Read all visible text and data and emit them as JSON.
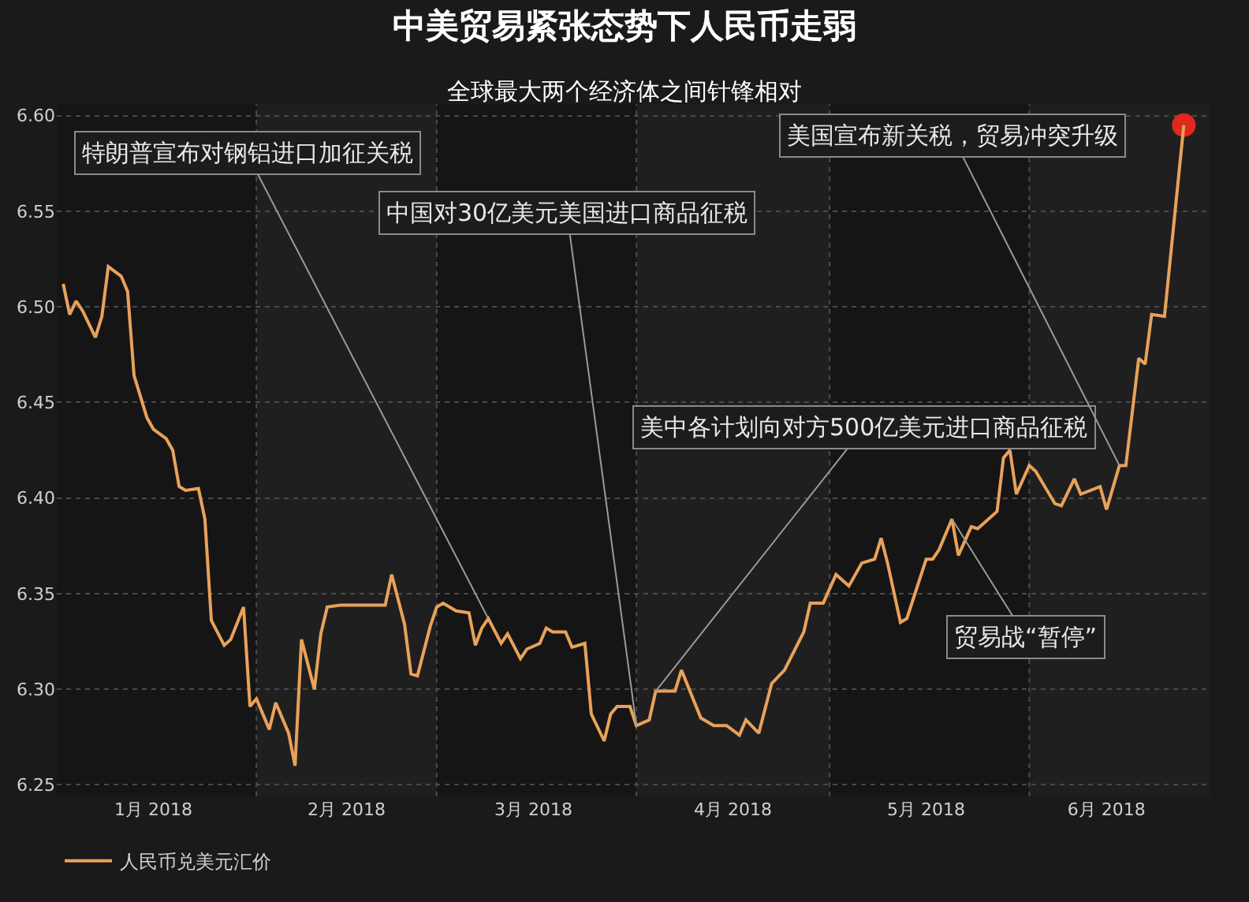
{
  "chart_data": {
    "type": "line",
    "title": "中美贸易紧张态势下人民币走弱",
    "subtitle": "全球最大两个经济体之间针锋相对",
    "x": [
      "2018-01-02",
      "2018-01-03",
      "2018-01-04",
      "2018-01-05",
      "2018-01-07",
      "2018-01-08",
      "2018-01-09",
      "2018-01-11",
      "2018-01-12",
      "2018-01-13",
      "2018-01-15",
      "2018-01-16",
      "2018-01-18",
      "2018-01-19",
      "2018-01-20",
      "2018-01-21",
      "2018-01-23",
      "2018-01-24",
      "2018-01-25",
      "2018-01-27",
      "2018-01-28",
      "2018-01-30",
      "2018-01-31",
      "2018-02-01",
      "2018-02-03",
      "2018-02-04",
      "2018-02-06",
      "2018-02-07",
      "2018-02-08",
      "2018-02-10",
      "2018-02-11",
      "2018-02-12",
      "2018-02-14",
      "2018-02-21",
      "2018-02-22",
      "2018-02-24",
      "2018-02-25",
      "2018-02-26",
      "2018-02-28",
      "2018-03-01",
      "2018-03-02",
      "2018-03-04",
      "2018-03-06",
      "2018-03-07",
      "2018-03-08",
      "2018-03-09",
      "2018-03-11",
      "2018-03-12",
      "2018-03-14",
      "2018-03-15",
      "2018-03-17",
      "2018-03-18",
      "2018-03-19",
      "2018-03-21",
      "2018-03-22",
      "2018-03-24",
      "2018-03-25",
      "2018-03-27",
      "2018-03-28",
      "2018-03-29",
      "2018-03-31",
      "2018-04-01",
      "2018-04-03",
      "2018-04-04",
      "2018-04-07",
      "2018-04-08",
      "2018-04-11",
      "2018-04-13",
      "2018-04-15",
      "2018-04-17",
      "2018-04-18",
      "2018-04-20",
      "2018-04-22",
      "2018-04-24",
      "2018-04-27",
      "2018-04-28",
      "2018-04-30",
      "2018-05-02",
      "2018-05-04",
      "2018-05-06",
      "2018-05-08",
      "2018-05-09",
      "2018-05-10",
      "2018-05-12",
      "2018-05-13",
      "2018-05-16",
      "2018-05-17",
      "2018-05-18",
      "2018-05-20",
      "2018-05-21",
      "2018-05-23",
      "2018-05-24",
      "2018-05-27",
      "2018-05-28",
      "2018-05-29",
      "2018-05-30",
      "2018-06-01",
      "2018-06-02",
      "2018-06-05",
      "2018-06-06",
      "2018-06-08",
      "2018-06-09",
      "2018-06-12",
      "2018-06-13",
      "2018-06-15",
      "2018-06-16",
      "2018-06-18",
      "2018-06-19",
      "2018-06-20",
      "2018-06-22",
      "2018-06-25"
    ],
    "series": [
      {
        "name": "人民币兑美元汇价",
        "color": "#e8a25a",
        "values": [
          6.512,
          6.496,
          6.503,
          6.498,
          6.484,
          6.495,
          6.521,
          6.516,
          6.508,
          6.464,
          6.442,
          6.436,
          6.431,
          6.425,
          6.406,
          6.404,
          6.405,
          6.389,
          6.336,
          6.323,
          6.326,
          6.343,
          6.291,
          6.295,
          6.279,
          6.293,
          6.277,
          6.26,
          6.326,
          6.3,
          6.329,
          6.343,
          6.344,
          6.344,
          6.36,
          6.334,
          6.308,
          6.307,
          6.333,
          6.343,
          6.345,
          6.341,
          6.34,
          6.323,
          6.332,
          6.337,
          6.324,
          6.329,
          6.316,
          6.321,
          6.324,
          6.332,
          6.33,
          6.33,
          6.322,
          6.324,
          6.287,
          6.273,
          6.287,
          6.291,
          6.291,
          6.281,
          6.284,
          6.299,
          6.299,
          6.31,
          6.285,
          6.281,
          6.281,
          6.276,
          6.284,
          6.277,
          6.303,
          6.31,
          6.33,
          6.345,
          6.345,
          6.36,
          6.354,
          6.366,
          6.368,
          6.379,
          6.366,
          6.335,
          6.337,
          6.368,
          6.368,
          6.373,
          6.389,
          6.37,
          6.385,
          6.384,
          6.393,
          6.421,
          6.425,
          6.402,
          6.417,
          6.414,
          6.397,
          6.396,
          6.41,
          6.402,
          6.406,
          6.394,
          6.417,
          6.417,
          6.473,
          6.47,
          6.496,
          6.495,
          6.595
        ]
      },
      {
        "type": "scatter",
        "color": "#e0281e",
        "marker": "circle",
        "x": [
          "2018-06-25"
        ],
        "values": [
          6.595
        ]
      }
    ],
    "xlim": [
      "2018-01-01",
      "2018-06-29"
    ],
    "xticks": [
      {
        "value": "2018-01-16",
        "label": "1月 2018"
      },
      {
        "value": "2018-02-01",
        "label": null
      },
      {
        "value": "2018-02-15",
        "label": "2月 2018"
      },
      {
        "value": "2018-03-01",
        "label": null
      },
      {
        "value": "2018-03-16",
        "label": "3月 2018"
      },
      {
        "value": "2018-04-01",
        "label": null
      },
      {
        "value": "2018-04-16",
        "label": "4月 2018"
      },
      {
        "value": "2018-05-01",
        "label": null
      },
      {
        "value": "2018-05-16",
        "label": "5月 2018"
      },
      {
        "value": "2018-06-01",
        "label": null
      },
      {
        "value": "2018-06-13",
        "label": "6月 2018"
      }
    ],
    "ylim": [
      6.244,
      6.606
    ],
    "yticks": [
      {
        "value": 6.25,
        "label": "6.25"
      },
      {
        "value": 6.3,
        "label": "6.30"
      },
      {
        "value": 6.35,
        "label": "6.35"
      },
      {
        "value": 6.4,
        "label": "6.40"
      },
      {
        "value": 6.45,
        "label": "6.45"
      },
      {
        "value": 6.5,
        "label": "6.50"
      },
      {
        "value": 6.55,
        "label": "6.55"
      },
      {
        "value": 6.6,
        "label": "6.60"
      }
    ],
    "bands": [
      {
        "axis": "x",
        "from": "2018-02-01",
        "to": "2018-03-01",
        "color": "#1f1f1f"
      },
      {
        "axis": "x",
        "from": "2018-04-01",
        "to": "2018-05-01",
        "color": "#1f1f1f"
      },
      {
        "axis": "x",
        "from": "2018-06-01",
        "to": "2018-06-29",
        "color": "#1f1f1f"
      }
    ],
    "annotations": [
      {
        "text": "特朗普宣布对钢铝进口加征关税",
        "x": "2018-03-09",
        "y": 6.337
      },
      {
        "text": "中国对30亿美元美国进口商品征税",
        "x": "2018-04-01",
        "y": 6.281
      },
      {
        "text": "美中各计划向对方500亿美元进口商品征税",
        "x": "2018-04-04",
        "y": 6.299
      },
      {
        "text": "美国宣布新关税，贸易冲突升级",
        "x": "2018-06-15",
        "y": 6.417
      },
      {
        "text": "贸易战“暂停”",
        "x": "2018-05-20",
        "y": 6.389
      }
    ],
    "grid": true,
    "legend": "bottom left",
    "marker": "none",
    "line_style": "solid"
  }
}
